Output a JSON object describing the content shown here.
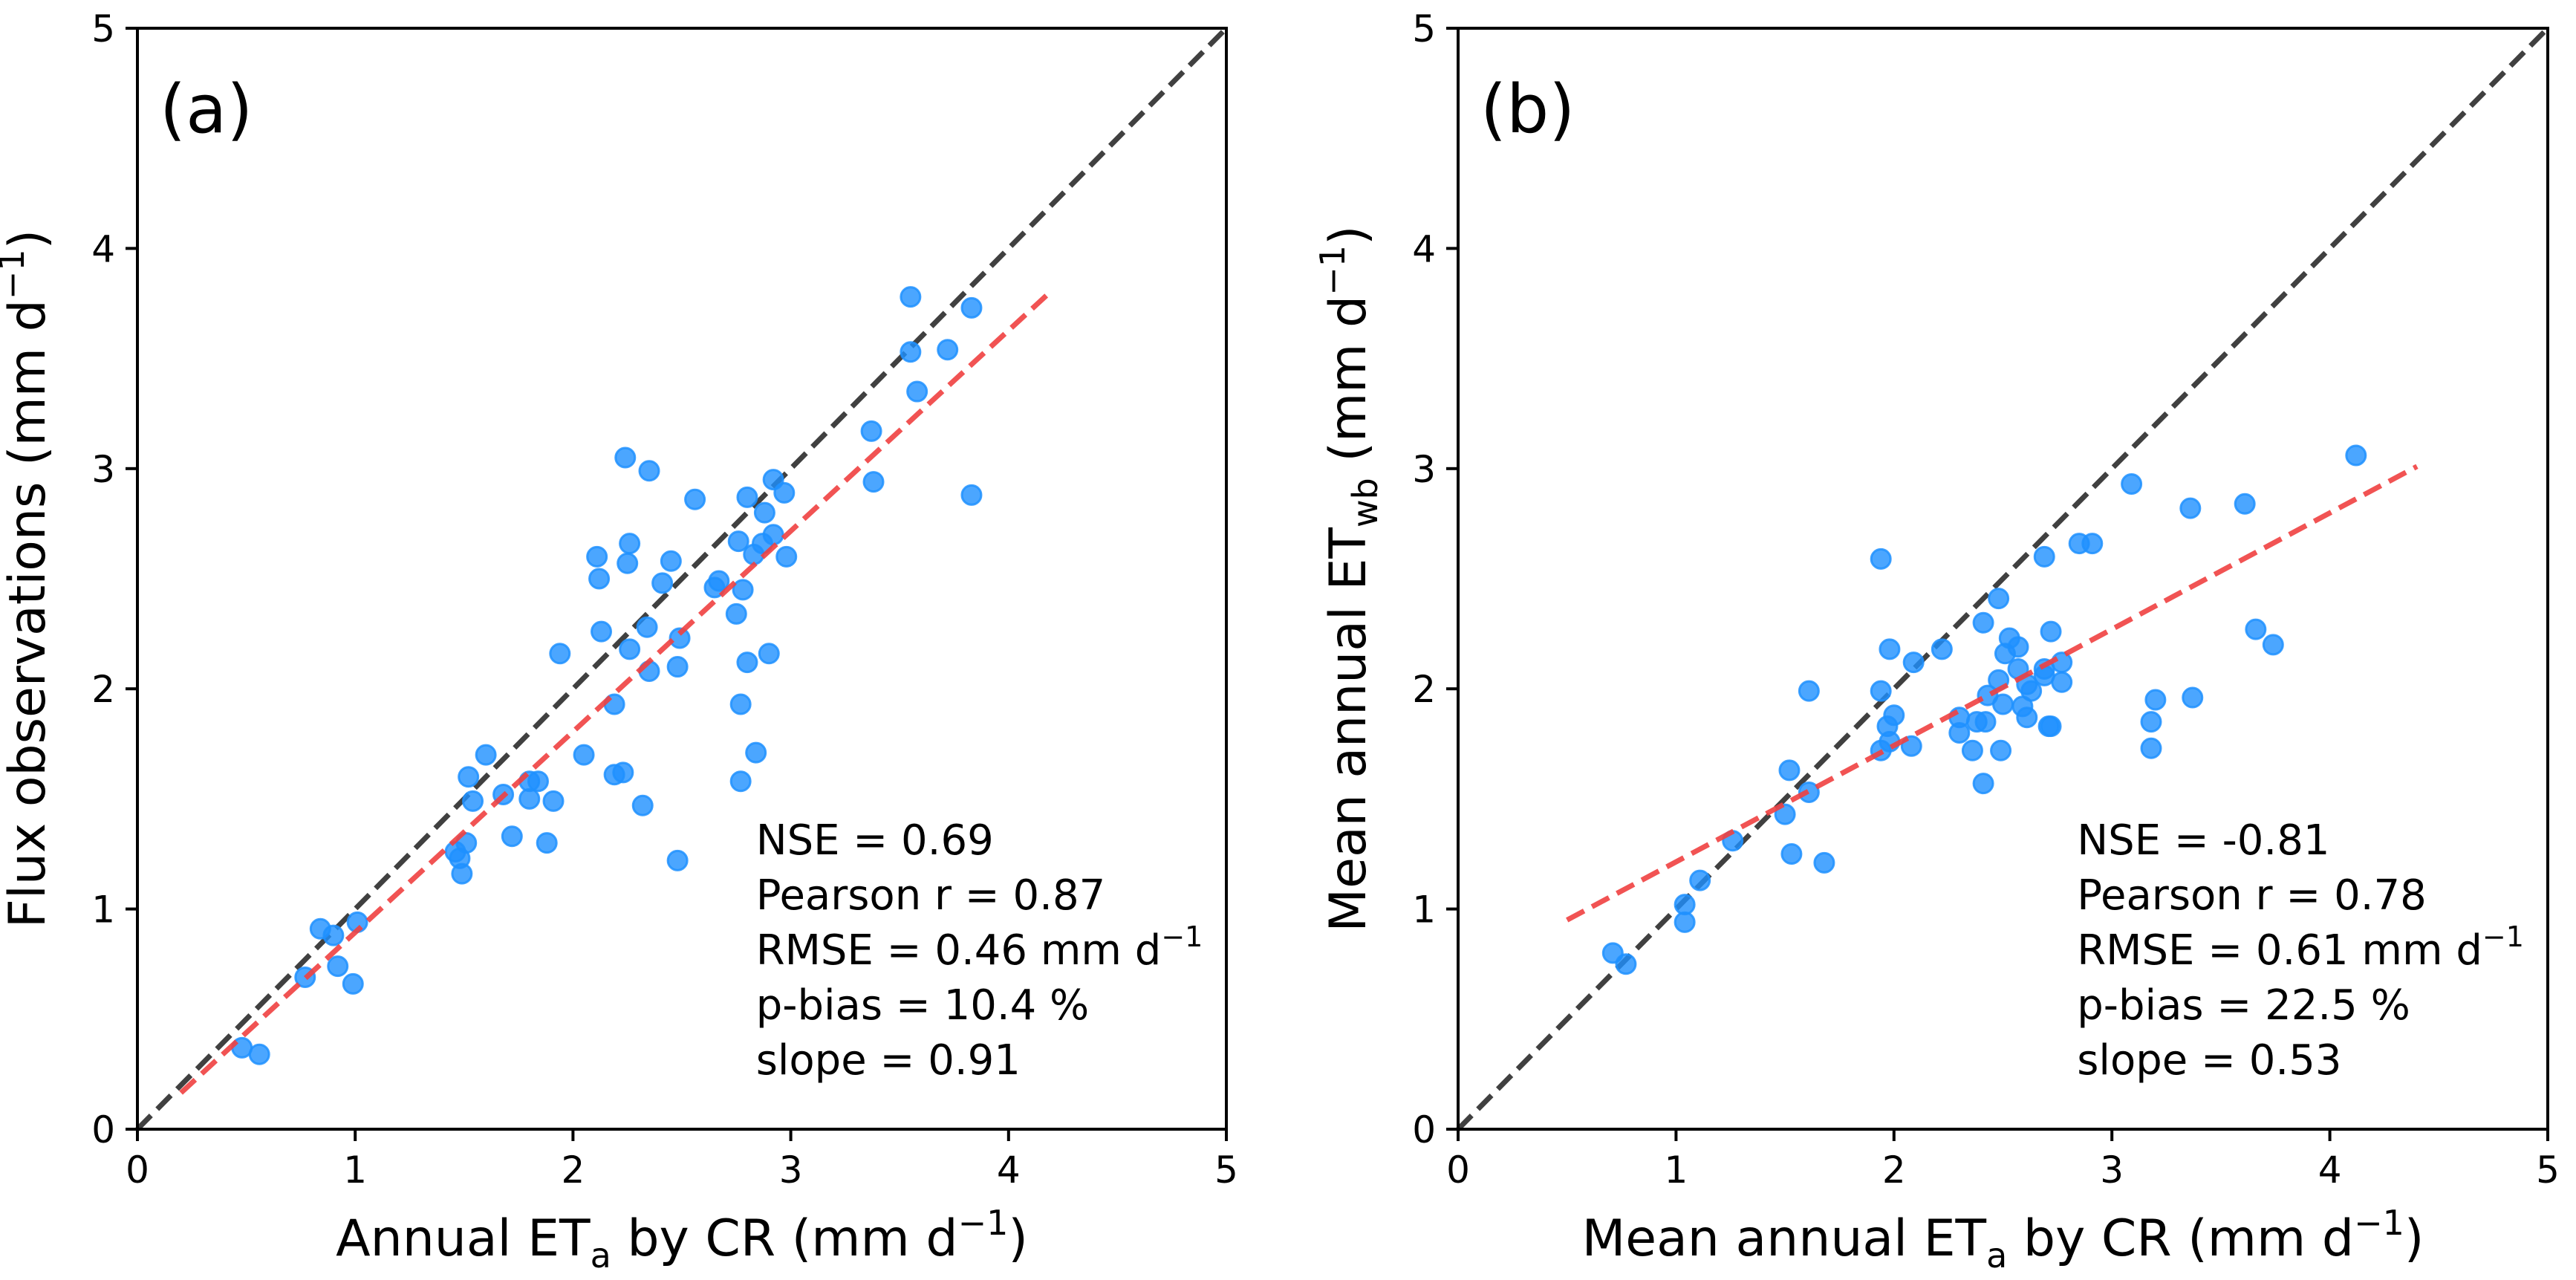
{
  "chart_data": [
    {
      "type": "scatter",
      "panel_label": "(a)",
      "xlabel": {
        "main": "Annual ET",
        "sub": "a",
        "rest": " by CR (mm d",
        "sup": "−1",
        "close": ")"
      },
      "ylabel": {
        "main": "Flux observations (mm d",
        "sup": "−1",
        "close": ")"
      },
      "xlim": [
        0,
        5
      ],
      "ylim": [
        0,
        5
      ],
      "xticks": [
        "0",
        "1",
        "2",
        "3",
        "4",
        "5"
      ],
      "yticks": [
        "0",
        "1",
        "2",
        "3",
        "4",
        "5"
      ],
      "grid": false,
      "one_to_one_line": {
        "from": [
          0,
          0
        ],
        "to": [
          5,
          5
        ],
        "color": "#404040",
        "style": "dashed"
      },
      "fit_line": {
        "from": [
          0.2,
          0.165
        ],
        "to": [
          4.2,
          3.81
        ],
        "color": "#f04040",
        "style": "dashed"
      },
      "marker_color": "#1e90ff",
      "stats": [
        {
          "text": "NSE = 0.69"
        },
        {
          "text": "Pearson r = 0.87"
        },
        {
          "text": "RMSE = 0.46 mm d",
          "sup": "−1"
        },
        {
          "text": "p-bias = 10.4 %"
        },
        {
          "text": "slope = 0.91"
        }
      ],
      "points": [
        [
          0.48,
          0.37
        ],
        [
          0.56,
          0.34
        ],
        [
          0.77,
          0.69
        ],
        [
          0.84,
          0.91
        ],
        [
          0.9,
          0.88
        ],
        [
          0.92,
          0.74
        ],
        [
          0.99,
          0.66
        ],
        [
          1.01,
          0.94
        ],
        [
          1.46,
          1.26
        ],
        [
          1.48,
          1.23
        ],
        [
          1.49,
          1.16
        ],
        [
          1.51,
          1.3
        ],
        [
          1.52,
          1.6
        ],
        [
          1.54,
          1.49
        ],
        [
          1.6,
          1.7
        ],
        [
          1.68,
          1.52
        ],
        [
          1.72,
          1.33
        ],
        [
          1.8,
          1.58
        ],
        [
          1.8,
          1.5
        ],
        [
          1.84,
          1.58
        ],
        [
          1.88,
          1.3
        ],
        [
          1.91,
          1.49
        ],
        [
          1.94,
          2.16
        ],
        [
          2.05,
          1.7
        ],
        [
          2.11,
          2.6
        ],
        [
          2.12,
          2.5
        ],
        [
          2.13,
          2.26
        ],
        [
          2.19,
          1.93
        ],
        [
          2.19,
          1.61
        ],
        [
          2.23,
          1.62
        ],
        [
          2.24,
          3.05
        ],
        [
          2.25,
          2.57
        ],
        [
          2.26,
          2.66
        ],
        [
          2.26,
          2.18
        ],
        [
          2.32,
          1.47
        ],
        [
          2.34,
          2.28
        ],
        [
          2.35,
          2.99
        ],
        [
          2.35,
          2.08
        ],
        [
          2.41,
          2.48
        ],
        [
          2.45,
          2.58
        ],
        [
          2.48,
          2.1
        ],
        [
          2.48,
          1.22
        ],
        [
          2.49,
          2.23
        ],
        [
          2.56,
          2.86
        ],
        [
          2.65,
          2.46
        ],
        [
          2.67,
          2.49
        ],
        [
          2.75,
          2.34
        ],
        [
          2.76,
          2.67
        ],
        [
          2.77,
          1.93
        ],
        [
          2.77,
          1.58
        ],
        [
          2.78,
          2.45
        ],
        [
          2.8,
          2.87
        ],
        [
          2.8,
          2.12
        ],
        [
          2.83,
          2.61
        ],
        [
          2.84,
          1.71
        ],
        [
          2.87,
          2.66
        ],
        [
          2.88,
          2.8
        ],
        [
          2.9,
          2.16
        ],
        [
          2.92,
          2.7
        ],
        [
          2.92,
          2.95
        ],
        [
          2.97,
          2.89
        ],
        [
          2.98,
          2.6
        ],
        [
          3.37,
          3.17
        ],
        [
          3.38,
          2.94
        ],
        [
          3.55,
          3.78
        ],
        [
          3.55,
          3.53
        ],
        [
          3.58,
          3.35
        ],
        [
          3.72,
          3.54
        ],
        [
          3.83,
          3.73
        ],
        [
          3.83,
          2.88
        ]
      ]
    },
    {
      "type": "scatter",
      "panel_label": "(b)",
      "xlabel": {
        "main": "Mean annual ET",
        "sub": "a",
        "rest": " by CR (mm d",
        "sup": "−1",
        "close": ")"
      },
      "ylabel": {
        "main": "Mean annual ET",
        "sub": "wb",
        "rest": " (mm d",
        "sup": "−1",
        "close": ")"
      },
      "xlim": [
        0,
        5
      ],
      "ylim": [
        0,
        5
      ],
      "xticks": [
        "0",
        "1",
        "2",
        "3",
        "4",
        "5"
      ],
      "yticks": [
        "0",
        "1",
        "2",
        "3",
        "4",
        "5"
      ],
      "grid": false,
      "one_to_one_line": {
        "from": [
          0,
          0
        ],
        "to": [
          5,
          5
        ],
        "color": "#404040",
        "style": "dashed"
      },
      "fit_line": {
        "from": [
          0.5,
          0.95
        ],
        "to": [
          4.4,
          3.01
        ],
        "color": "#f04040",
        "style": "dashed"
      },
      "marker_color": "#1e90ff",
      "stats": [
        {
          "text": "NSE = -0.81"
        },
        {
          "text": "Pearson r = 0.78"
        },
        {
          "text": "RMSE = 0.61 mm d",
          "sup": "−1"
        },
        {
          "text": "p-bias = 22.5 %"
        },
        {
          "text": "slope = 0.53"
        }
      ],
      "points": [
        [
          0.71,
          0.8
        ],
        [
          0.77,
          0.75
        ],
        [
          1.04,
          1.02
        ],
        [
          1.04,
          0.94
        ],
        [
          1.11,
          1.13
        ],
        [
          1.26,
          1.31
        ],
        [
          1.5,
          1.43
        ],
        [
          1.52,
          1.63
        ],
        [
          1.53,
          1.25
        ],
        [
          1.61,
          1.53
        ],
        [
          1.61,
          1.99
        ],
        [
          1.68,
          1.21
        ],
        [
          1.94,
          2.59
        ],
        [
          1.94,
          1.99
        ],
        [
          1.94,
          1.72
        ],
        [
          1.97,
          1.83
        ],
        [
          1.98,
          1.76
        ],
        [
          1.98,
          2.18
        ],
        [
          2.0,
          1.88
        ],
        [
          2.08,
          1.74
        ],
        [
          2.09,
          2.12
        ],
        [
          2.22,
          2.18
        ],
        [
          2.3,
          1.87
        ],
        [
          2.3,
          1.8
        ],
        [
          2.36,
          1.72
        ],
        [
          2.38,
          1.85
        ],
        [
          2.41,
          2.3
        ],
        [
          2.41,
          1.57
        ],
        [
          2.42,
          1.85
        ],
        [
          2.43,
          1.97
        ],
        [
          2.48,
          2.41
        ],
        [
          2.48,
          2.04
        ],
        [
          2.49,
          1.72
        ],
        [
          2.5,
          1.93
        ],
        [
          2.51,
          2.16
        ],
        [
          2.53,
          2.23
        ],
        [
          2.57,
          2.19
        ],
        [
          2.57,
          2.09
        ],
        [
          2.59,
          1.92
        ],
        [
          2.61,
          2.02
        ],
        [
          2.61,
          1.87
        ],
        [
          2.63,
          1.99
        ],
        [
          2.69,
          2.6
        ],
        [
          2.69,
          2.09
        ],
        [
          2.69,
          2.06
        ],
        [
          2.71,
          1.83
        ],
        [
          2.72,
          2.26
        ],
        [
          2.72,
          1.83
        ],
        [
          2.77,
          2.12
        ],
        [
          2.77,
          2.03
        ],
        [
          2.85,
          2.66
        ],
        [
          2.91,
          2.66
        ],
        [
          3.09,
          2.93
        ],
        [
          3.18,
          1.85
        ],
        [
          3.18,
          1.73
        ],
        [
          3.2,
          1.95
        ],
        [
          3.36,
          2.82
        ],
        [
          3.37,
          1.96
        ],
        [
          3.61,
          2.84
        ],
        [
          3.66,
          2.27
        ],
        [
          3.74,
          2.2
        ],
        [
          4.12,
          3.06
        ]
      ]
    }
  ]
}
